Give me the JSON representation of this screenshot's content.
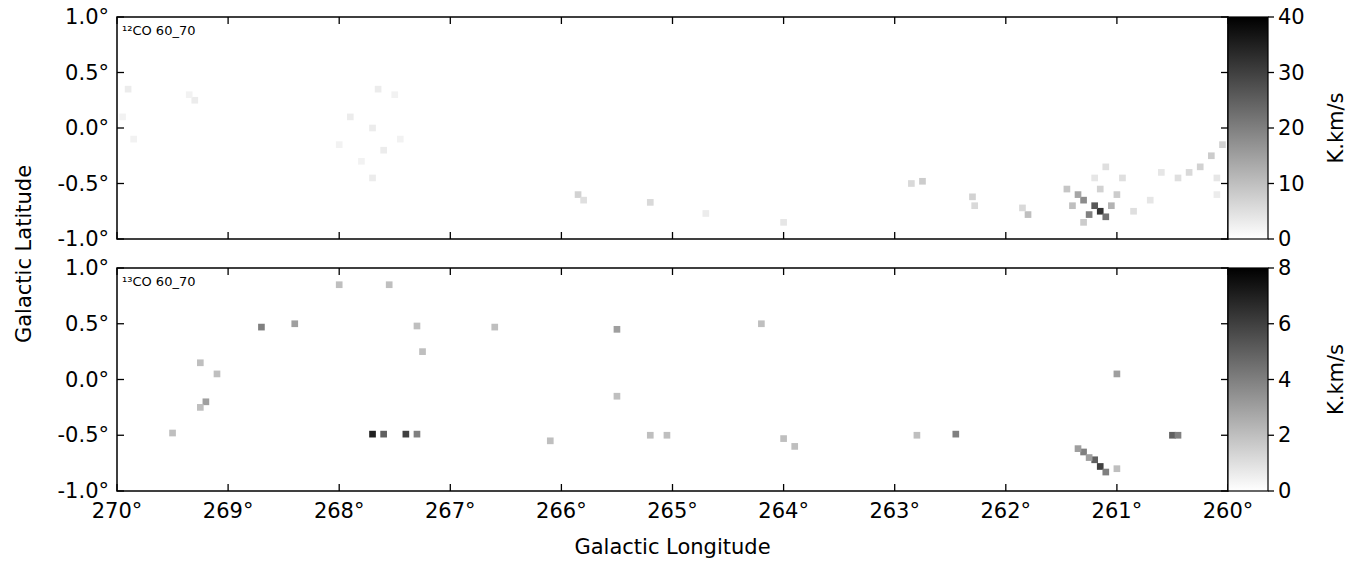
{
  "chart_data": [
    {
      "type": "heatmap",
      "title": "¹²CO 60_70",
      "ylabel": "Galactic Latitude",
      "xlim": [
        270,
        260
      ],
      "ylim": [
        -1,
        1
      ],
      "xticks": [
        270,
        269,
        268,
        267,
        266,
        265,
        264,
        263,
        262,
        261,
        260
      ],
      "yticks": [
        {
          "value": -1,
          "label": "-1.0°"
        },
        {
          "value": -0.5,
          "label": "-0.5°"
        },
        {
          "value": 0,
          "label": "0.0°"
        },
        {
          "value": 0.5,
          "label": "0.5°"
        },
        {
          "value": 1,
          "label": "1.0°"
        }
      ],
      "tick_labels": "y",
      "colorbar": {
        "range": [
          0,
          40
        ],
        "ticks": [
          0,
          10,
          20,
          30,
          40
        ],
        "label": "K.km/s"
      },
      "cells": [
        [
          261.15,
          -0.75,
          32
        ],
        [
          261.2,
          -0.7,
          26
        ],
        [
          261.1,
          -0.8,
          22
        ],
        [
          261.3,
          -0.65,
          18
        ],
        [
          261.35,
          -0.6,
          14
        ],
        [
          261.25,
          -0.78,
          20
        ],
        [
          261.05,
          -0.7,
          12
        ],
        [
          261.4,
          -0.7,
          10
        ],
        [
          261.0,
          -0.6,
          8
        ],
        [
          261.15,
          -0.55,
          7
        ],
        [
          261.3,
          -0.85,
          8
        ],
        [
          261.45,
          -0.55,
          9
        ],
        [
          261.1,
          -0.35,
          5
        ],
        [
          260.95,
          -0.45,
          5
        ],
        [
          261.2,
          -0.45,
          4
        ],
        [
          260.85,
          -0.75,
          5
        ],
        [
          260.7,
          -0.65,
          4
        ],
        [
          260.45,
          -0.45,
          5
        ],
        [
          260.35,
          -0.4,
          6
        ],
        [
          260.25,
          -0.35,
          7
        ],
        [
          260.15,
          -0.25,
          8
        ],
        [
          260.05,
          -0.15,
          7
        ],
        [
          260.1,
          -0.45,
          4
        ],
        [
          260.6,
          -0.4,
          4
        ],
        [
          260.1,
          -0.6,
          3
        ],
        [
          261.8,
          -0.78,
          10
        ],
        [
          261.85,
          -0.72,
          6
        ],
        [
          262.3,
          -0.62,
          7
        ],
        [
          262.28,
          -0.7,
          6
        ],
        [
          262.75,
          -0.48,
          8
        ],
        [
          262.85,
          -0.5,
          6
        ],
        [
          265.85,
          -0.6,
          7
        ],
        [
          265.8,
          -0.65,
          5
        ],
        [
          265.2,
          -0.67,
          6
        ],
        [
          264.0,
          -0.85,
          4
        ],
        [
          264.7,
          -0.77,
          3
        ],
        [
          267.9,
          0.1,
          3
        ],
        [
          267.7,
          0.0,
          3
        ],
        [
          267.6,
          -0.2,
          3
        ],
        [
          267.8,
          -0.3,
          2
        ],
        [
          267.5,
          0.3,
          2
        ],
        [
          267.65,
          0.35,
          3
        ],
        [
          268.0,
          -0.15,
          2
        ],
        [
          267.45,
          -0.1,
          2
        ],
        [
          267.7,
          -0.45,
          3
        ],
        [
          269.3,
          0.25,
          3
        ],
        [
          269.35,
          0.3,
          2
        ],
        [
          269.9,
          0.35,
          3
        ],
        [
          269.95,
          0.1,
          2
        ],
        [
          269.85,
          -0.1,
          2
        ]
      ]
    },
    {
      "type": "heatmap",
      "title": "¹³CO 60_70",
      "xlabel": "Galactic Longitude",
      "xlim": [
        270,
        260
      ],
      "ylim": [
        -1,
        1
      ],
      "xticks": [
        {
          "value": 270,
          "label": "270°"
        },
        {
          "value": 269,
          "label": "269°"
        },
        {
          "value": 268,
          "label": "268°"
        },
        {
          "value": 267,
          "label": "267°"
        },
        {
          "value": 266,
          "label": "266°"
        },
        {
          "value": 265,
          "label": "265°"
        },
        {
          "value": 264,
          "label": "264°"
        },
        {
          "value": 263,
          "label": "263°"
        },
        {
          "value": 262,
          "label": "262°"
        },
        {
          "value": 261,
          "label": "261°"
        },
        {
          "value": 260,
          "label": "260°"
        }
      ],
      "yticks": [
        {
          "value": -1,
          "label": "-1.0°"
        },
        {
          "value": -0.5,
          "label": "-0.5°"
        },
        {
          "value": 0,
          "label": "0.0°"
        },
        {
          "value": 0.5,
          "label": "0.5°"
        },
        {
          "value": 1,
          "label": "1.0°"
        }
      ],
      "colorbar": {
        "range": [
          0,
          8
        ],
        "ticks": [
          0,
          2,
          4,
          6,
          8
        ],
        "label": "K.km/s"
      },
      "cells": [
        [
          261.2,
          -0.72,
          5
        ],
        [
          261.15,
          -0.78,
          6
        ],
        [
          261.1,
          -0.83,
          4
        ],
        [
          261.3,
          -0.65,
          4
        ],
        [
          261.25,
          -0.7,
          3
        ],
        [
          261.35,
          -0.62,
          3
        ],
        [
          261.0,
          0.05,
          3
        ],
        [
          261.0,
          -0.8,
          2
        ],
        [
          260.5,
          -0.5,
          5
        ],
        [
          260.45,
          -0.5,
          4
        ],
        [
          262.45,
          -0.49,
          4
        ],
        [
          262.8,
          -0.5,
          2
        ],
        [
          263.9,
          -0.6,
          2
        ],
        [
          264.0,
          -0.53,
          2
        ],
        [
          264.2,
          0.5,
          2
        ],
        [
          265.5,
          0.45,
          3
        ],
        [
          265.5,
          -0.15,
          2
        ],
        [
          265.05,
          -0.5,
          2
        ],
        [
          265.2,
          -0.5,
          2
        ],
        [
          266.1,
          -0.55,
          2
        ],
        [
          266.6,
          0.47,
          2
        ],
        [
          267.7,
          -0.49,
          7
        ],
        [
          267.6,
          -0.49,
          5
        ],
        [
          267.4,
          -0.49,
          6
        ],
        [
          267.3,
          -0.49,
          4
        ],
        [
          267.25,
          0.25,
          2
        ],
        [
          267.3,
          0.48,
          2
        ],
        [
          268.0,
          0.85,
          2
        ],
        [
          268.7,
          0.47,
          4
        ],
        [
          268.4,
          0.5,
          3
        ],
        [
          269.2,
          -0.2,
          3
        ],
        [
          269.25,
          -0.25,
          2
        ],
        [
          269.25,
          0.15,
          2
        ],
        [
          269.5,
          -0.48,
          2
        ],
        [
          269.1,
          0.05,
          2
        ],
        [
          267.55,
          0.85,
          2
        ]
      ]
    }
  ]
}
